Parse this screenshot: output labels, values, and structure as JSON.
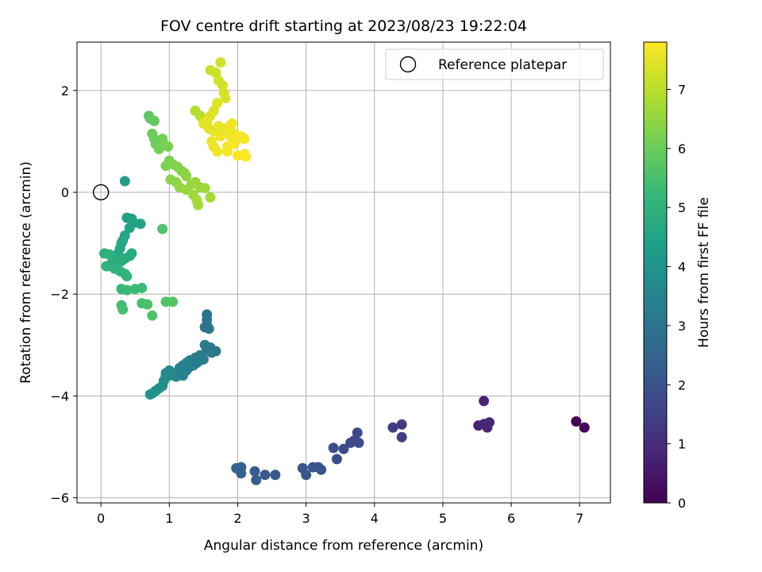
{
  "chart_data": {
    "type": "scatter",
    "title": "FOV centre drift starting at 2023/08/23 19:22:04",
    "xlabel": "Angular distance from reference (arcmin)",
    "ylabel": "Rotation from reference (arcmin)",
    "xlim": [
      -0.35,
      7.45
    ],
    "ylim": [
      -6.1,
      2.95
    ],
    "xticks": [
      0,
      1,
      2,
      3,
      4,
      5,
      6,
      7
    ],
    "xtick_labels": [
      "0",
      "1",
      "2",
      "3",
      "4",
      "5",
      "6",
      "7"
    ],
    "yticks": [
      -6,
      -4,
      -2,
      0,
      2
    ],
    "ytick_labels": [
      "−6",
      "−4",
      "−2",
      "0",
      "2"
    ],
    "grid": true,
    "legend": {
      "placement": "top-right",
      "entries": [
        "Reference platepar"
      ]
    },
    "reference_point": {
      "x": 0,
      "y": 0,
      "marker": "open-circle"
    },
    "colorbar": {
      "label": "Hours from first FF file",
      "range": [
        0,
        7.8
      ],
      "ticks": [
        0,
        1,
        2,
        3,
        4,
        5,
        6,
        7
      ],
      "tick_labels": [
        "0",
        "1",
        "2",
        "3",
        "4",
        "5",
        "6",
        "7"
      ],
      "colormap": "viridis"
    },
    "colormap_stops": [
      "#440154",
      "#482878",
      "#3e4989",
      "#31688e",
      "#26828e",
      "#1f9e89",
      "#35b779",
      "#6ece58",
      "#b5de2b",
      "#fde725"
    ],
    "series": [
      {
        "points": [
          [
            6.95,
            -4.5,
            0.05
          ],
          [
            7.07,
            -4.62,
            0.1
          ],
          [
            5.6,
            -4.1,
            0.8
          ],
          [
            5.52,
            -4.58,
            0.75
          ],
          [
            5.6,
            -4.55,
            0.8
          ],
          [
            5.65,
            -4.62,
            0.8
          ],
          [
            5.68,
            -4.52,
            0.85
          ],
          [
            4.27,
            -4.62,
            1.4
          ],
          [
            4.4,
            -4.56,
            1.4
          ],
          [
            4.4,
            -4.81,
            1.45
          ],
          [
            3.75,
            -4.72,
            1.7
          ],
          [
            3.7,
            -4.88,
            1.7
          ],
          [
            3.77,
            -4.92,
            1.75
          ],
          [
            3.65,
            -4.92,
            1.75
          ],
          [
            3.55,
            -5.04,
            1.8
          ],
          [
            3.4,
            -5.02,
            1.85
          ],
          [
            3.45,
            -5.24,
            1.85
          ],
          [
            3.22,
            -5.45,
            2.0
          ],
          [
            3.18,
            -5.4,
            2.0
          ],
          [
            3.1,
            -5.4,
            2.05
          ],
          [
            3.0,
            -5.55,
            2.1
          ],
          [
            2.95,
            -5.42,
            2.1
          ],
          [
            2.55,
            -5.55,
            2.2
          ],
          [
            2.4,
            -5.55,
            2.25
          ],
          [
            2.25,
            -5.48,
            2.3
          ],
          [
            2.27,
            -5.65,
            2.3
          ],
          [
            2.05,
            -5.4,
            2.4
          ],
          [
            1.98,
            -5.42,
            2.45
          ],
          [
            2.05,
            -5.52,
            2.45
          ]
        ]
      },
      {
        "points": [
          [
            1.55,
            -2.4,
            3.0
          ],
          [
            1.55,
            -2.5,
            3.0
          ],
          [
            1.55,
            -2.6,
            3.05
          ],
          [
            1.58,
            -2.68,
            3.05
          ],
          [
            1.52,
            -2.65,
            3.0
          ],
          [
            1.68,
            -3.12,
            3.1
          ],
          [
            1.6,
            -3.05,
            3.15
          ],
          [
            1.55,
            -3.1,
            3.2
          ],
          [
            1.52,
            -3.0,
            3.2
          ],
          [
            1.45,
            -3.2,
            3.25
          ],
          [
            1.38,
            -3.25,
            3.3
          ],
          [
            1.3,
            -3.3,
            3.35
          ],
          [
            1.25,
            -3.35,
            3.4
          ],
          [
            1.2,
            -3.4,
            3.45
          ],
          [
            1.15,
            -3.45,
            3.5
          ],
          [
            1.1,
            -3.55,
            3.55
          ],
          [
            1.05,
            -3.55,
            3.6
          ],
          [
            1.0,
            -3.6,
            3.65
          ],
          [
            0.95,
            -3.6,
            3.7
          ],
          [
            0.92,
            -3.7,
            3.75
          ],
          [
            0.9,
            -3.8,
            3.8
          ],
          [
            0.85,
            -3.85,
            3.85
          ],
          [
            0.8,
            -3.9,
            3.9
          ],
          [
            0.75,
            -3.95,
            3.95
          ],
          [
            0.72,
            -3.97,
            4.0
          ],
          [
            1.45,
            -3.3,
            3.3
          ],
          [
            1.35,
            -3.4,
            3.35
          ],
          [
            1.25,
            -3.5,
            3.45
          ],
          [
            1.18,
            -3.55,
            3.5
          ],
          [
            1.1,
            -3.62,
            3.6
          ],
          [
            1.0,
            -3.5,
            3.65
          ],
          [
            0.95,
            -3.55,
            3.7
          ],
          [
            1.2,
            -3.6,
            3.5
          ],
          [
            1.28,
            -3.45,
            3.4
          ],
          [
            1.4,
            -3.35,
            3.3
          ],
          [
            1.5,
            -3.28,
            3.25
          ],
          [
            1.62,
            -3.15,
            3.15
          ]
        ]
      },
      {
        "points": [
          [
            0.35,
            0.22,
            4.3
          ],
          [
            0.38,
            -0.5,
            4.4
          ],
          [
            0.45,
            -0.52,
            4.45
          ],
          [
            0.58,
            -0.62,
            4.5
          ],
          [
            0.48,
            -0.6,
            4.45
          ],
          [
            0.42,
            -0.7,
            4.5
          ],
          [
            0.35,
            -0.85,
            4.55
          ],
          [
            0.32,
            -0.95,
            4.6
          ],
          [
            0.3,
            -1.0,
            4.6
          ],
          [
            0.28,
            -1.1,
            4.65
          ],
          [
            0.25,
            -1.2,
            4.7
          ],
          [
            0.45,
            -1.2,
            4.7
          ],
          [
            0.42,
            -1.25,
            4.75
          ],
          [
            0.35,
            -1.3,
            4.8
          ],
          [
            0.3,
            -1.35,
            4.8
          ],
          [
            0.22,
            -1.35,
            4.85
          ],
          [
            0.15,
            -1.4,
            4.9
          ],
          [
            0.1,
            -1.45,
            4.9
          ],
          [
            0.05,
            -1.2,
            4.95
          ],
          [
            0.12,
            -1.22,
            4.95
          ],
          [
            0.08,
            -1.45,
            5.0
          ],
          [
            0.2,
            -1.5,
            5.0
          ],
          [
            0.28,
            -1.55,
            5.05
          ],
          [
            0.35,
            -1.6,
            5.1
          ],
          [
            0.38,
            -1.65,
            5.1
          ],
          [
            0.3,
            -1.9,
            5.2
          ],
          [
            0.38,
            -1.92,
            5.25
          ],
          [
            0.5,
            -1.9,
            5.3
          ],
          [
            0.6,
            -1.88,
            5.3
          ],
          [
            0.3,
            -2.22,
            5.4
          ],
          [
            0.32,
            -2.3,
            5.45
          ],
          [
            0.6,
            -2.18,
            5.5
          ],
          [
            0.68,
            -2.2,
            5.55
          ],
          [
            0.75,
            -2.42,
            5.6
          ],
          [
            0.95,
            -2.15,
            5.65
          ],
          [
            1.05,
            -2.15,
            5.7
          ],
          [
            0.9,
            -0.72,
            5.65
          ]
        ]
      },
      {
        "points": [
          [
            0.7,
            1.5,
            5.8
          ],
          [
            0.72,
            1.45,
            5.85
          ],
          [
            0.78,
            1.4,
            5.9
          ],
          [
            0.75,
            1.15,
            6.0
          ],
          [
            0.78,
            1.05,
            6.0
          ],
          [
            0.8,
            0.95,
            6.05
          ],
          [
            0.85,
            0.85,
            6.1
          ],
          [
            0.9,
            1.05,
            6.1
          ],
          [
            0.92,
            0.95,
            6.15
          ],
          [
            0.98,
            0.9,
            6.2
          ],
          [
            0.95,
            0.52,
            6.2
          ],
          [
            1.0,
            0.62,
            6.25
          ],
          [
            1.05,
            0.55,
            6.3
          ],
          [
            1.12,
            0.5,
            6.3
          ],
          [
            1.18,
            0.42,
            6.35
          ],
          [
            1.22,
            0.38,
            6.4
          ],
          [
            1.25,
            0.32,
            6.45
          ],
          [
            1.02,
            0.25,
            6.4
          ],
          [
            1.1,
            0.2,
            6.45
          ],
          [
            1.15,
            0.1,
            6.5
          ],
          [
            1.25,
            0.05,
            6.55
          ],
          [
            1.32,
            0.15,
            6.55
          ],
          [
            1.38,
            0.2,
            6.6
          ],
          [
            1.45,
            0.1,
            6.6
          ],
          [
            1.52,
            0.08,
            6.65
          ],
          [
            1.35,
            -0.05,
            6.65
          ],
          [
            1.4,
            -0.15,
            6.7
          ],
          [
            1.42,
            -0.25,
            6.7
          ],
          [
            1.6,
            -0.1,
            6.75
          ],
          [
            1.38,
            1.6,
            6.9
          ],
          [
            1.45,
            1.5,
            6.95
          ],
          [
            1.5,
            1.4,
            7.0
          ],
          [
            1.55,
            1.35,
            7.0
          ]
        ]
      },
      {
        "points": [
          [
            1.6,
            2.4,
            7.2
          ],
          [
            1.68,
            2.35,
            7.2
          ],
          [
            1.75,
            2.55,
            7.25
          ],
          [
            1.72,
            2.2,
            7.3
          ],
          [
            1.78,
            2.1,
            7.3
          ],
          [
            1.8,
            1.95,
            7.35
          ],
          [
            1.82,
            1.85,
            7.35
          ],
          [
            1.7,
            1.75,
            7.4
          ],
          [
            1.65,
            1.6,
            7.4
          ],
          [
            1.6,
            1.5,
            7.45
          ],
          [
            1.55,
            1.4,
            7.45
          ],
          [
            1.5,
            1.35,
            7.5
          ],
          [
            1.58,
            1.25,
            7.5
          ],
          [
            1.65,
            1.2,
            7.5
          ],
          [
            1.72,
            1.3,
            7.55
          ],
          [
            1.8,
            1.25,
            7.55
          ],
          [
            1.85,
            1.2,
            7.6
          ],
          [
            1.88,
            1.3,
            7.6
          ],
          [
            1.92,
            1.35,
            7.6
          ],
          [
            1.95,
            1.15,
            7.65
          ],
          [
            2.0,
            1.05,
            7.65
          ],
          [
            2.05,
            1.1,
            7.7
          ],
          [
            2.1,
            1.05,
            7.7
          ],
          [
            1.95,
            0.95,
            7.7
          ],
          [
            1.85,
            0.9,
            7.7
          ],
          [
            1.62,
            1.0,
            7.6
          ],
          [
            1.65,
            0.9,
            7.6
          ],
          [
            1.7,
            0.8,
            7.65
          ],
          [
            1.85,
            0.8,
            7.7
          ],
          [
            2.0,
            0.72,
            7.75
          ],
          [
            2.1,
            0.75,
            7.75
          ],
          [
            2.12,
            0.7,
            7.8
          ],
          [
            1.9,
            1.1,
            7.65
          ],
          [
            1.75,
            1.1,
            7.6
          ]
        ]
      }
    ]
  }
}
